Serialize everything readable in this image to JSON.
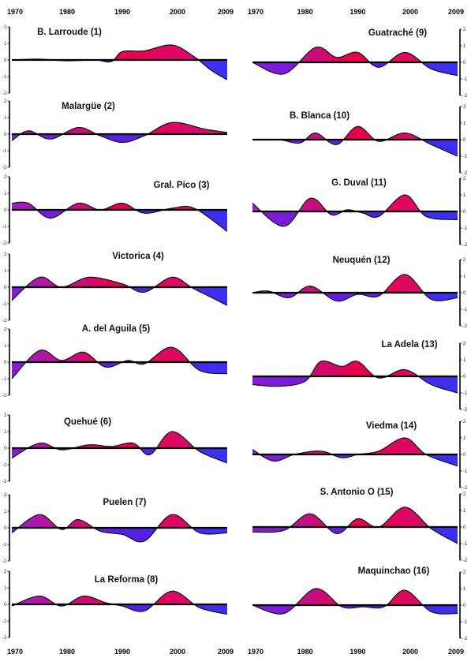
{
  "chart_data": {
    "type": "area",
    "xlim": [
      1970,
      2009
    ],
    "ylim": [
      -2,
      2
    ],
    "yticks": [
      "2",
      "1",
      "0",
      "-1",
      "-2"
    ],
    "top_axis_labels": [
      "1970",
      "1980",
      "1990",
      "2000",
      "2009"
    ],
    "bottom_axis_left_labels": [
      "1970",
      "1980",
      "1990",
      "2000",
      "2009"
    ],
    "bottom_axis_right_labels": [
      "1970",
      "1980",
      "1990",
      "2000",
      "2009"
    ],
    "positive_color": "#e8004a",
    "negative_color": "#5a1ee0",
    "stations": [
      {
        "title": "B. Larroude (1)",
        "years": [
          1970,
          1975,
          1980,
          1985,
          1988,
          1990,
          1994,
          1999,
          2003,
          2006,
          2009
        ],
        "values": [
          0,
          0.05,
          -0.05,
          0,
          -0.1,
          0.5,
          0.55,
          0.9,
          0.2,
          -0.6,
          -1.2
        ]
      },
      {
        "title": "Malargüe (2)",
        "years": [
          1970,
          1973,
          1977,
          1982,
          1986,
          1990,
          1994,
          1999,
          2005,
          2009
        ],
        "values": [
          -0.4,
          0.2,
          -0.3,
          0.4,
          -0.1,
          -0.5,
          -0.1,
          0.7,
          0.3,
          0.1
        ]
      },
      {
        "title": "Gral. Pico (3)",
        "years": [
          1970,
          1973,
          1977,
          1982,
          1986,
          1990,
          1994,
          1999,
          2003,
          2009
        ],
        "values": [
          0.4,
          0.4,
          -0.5,
          0.4,
          0,
          0.4,
          -0.2,
          0.1,
          0.1,
          -1.3
        ]
      },
      {
        "title": "Victorica (4)",
        "years": [
          1970,
          1975,
          1979,
          1984,
          1990,
          1994,
          1999,
          2003,
          2009
        ],
        "values": [
          -0.8,
          0.6,
          0,
          0.6,
          0.2,
          -0.3,
          0.6,
          -0.1,
          -1.1
        ]
      },
      {
        "title": "A. del Aguila (5)",
        "years": [
          1970,
          1975,
          1979,
          1983,
          1987,
          1991,
          1994,
          1999,
          2004,
          2009
        ],
        "values": [
          -1,
          0.7,
          0.1,
          0.6,
          -0.3,
          0.1,
          -0.1,
          0.9,
          -0.5,
          -0.7
        ]
      },
      {
        "title": "Quehué (6)",
        "years": [
          1970,
          1975,
          1979,
          1984,
          1988,
          1992,
          1995,
          1999,
          2004,
          2009
        ],
        "values": [
          -0.6,
          0.3,
          -0.1,
          0.2,
          0.1,
          0.3,
          -0.4,
          1,
          -0.2,
          -0.9
        ]
      },
      {
        "title": "Puelen (7)",
        "years": [
          1970,
          1975,
          1979,
          1982,
          1986,
          1990,
          1994,
          1999,
          2004,
          2009
        ],
        "values": [
          -0.3,
          0.8,
          -0.1,
          0.5,
          -0.2,
          -0.4,
          -0.8,
          0.8,
          -0.3,
          -0.3
        ]
      },
      {
        "title": "La Reforma (8)",
        "years": [
          1970,
          1975,
          1979,
          1983,
          1987,
          1990,
          1994,
          1999,
          2004,
          2009
        ],
        "values": [
          -0.1,
          0.5,
          -0.1,
          0.5,
          0.1,
          -0.1,
          -0.4,
          0.8,
          -0.2,
          -0.6
        ]
      },
      {
        "title": "Guatraché (9)",
        "years": [
          1970,
          1976,
          1982,
          1986,
          1990,
          1994,
          1999,
          2004,
          2009
        ],
        "values": [
          0,
          -0.7,
          0.9,
          0.3,
          0.6,
          -0.3,
          0.6,
          -0.4,
          -0.8
        ]
      },
      {
        "title": "B. Blanca (10)",
        "years": [
          1970,
          1975,
          1979,
          1982,
          1986,
          1990,
          1994,
          1999,
          2004,
          2009
        ],
        "values": [
          0,
          0,
          -0.2,
          0.4,
          -0.3,
          0.8,
          -0.1,
          0.4,
          -0.3,
          -1
        ]
      },
      {
        "title": "G. Duval (11)",
        "years": [
          1970,
          1976,
          1981,
          1985,
          1988,
          1991,
          1994,
          1999,
          2003,
          2009
        ],
        "values": [
          0.5,
          -0.9,
          0.8,
          -0.2,
          0.1,
          -0.1,
          -0.3,
          1,
          -0.3,
          -0.5
        ]
      },
      {
        "title": "Neuquén (12)",
        "years": [
          1970,
          1973,
          1977,
          1981,
          1986,
          1990,
          1994,
          1999,
          2004,
          2009
        ],
        "values": [
          0,
          0.1,
          -0.3,
          0.4,
          -0.5,
          -0.1,
          -0.2,
          1.1,
          -0.4,
          -0.3
        ]
      },
      {
        "title": "La Adela (13)",
        "years": [
          1970,
          1975,
          1980,
          1983,
          1987,
          1990,
          1994,
          1999,
          2004,
          2009
        ],
        "values": [
          -0.5,
          -0.6,
          -0.3,
          0.9,
          0.6,
          0.9,
          -0.1,
          0.4,
          -0.5,
          -1
        ]
      },
      {
        "title": "Viedma (14)",
        "years": [
          1970,
          1974,
          1978,
          1983,
          1987,
          1990,
          1994,
          1999,
          2003,
          2009
        ],
        "values": [
          0.3,
          -0.4,
          0,
          0.2,
          -0.2,
          0,
          0.2,
          1,
          0,
          -0.7
        ]
      },
      {
        "title": "S. Antonio O (15)",
        "years": [
          1970,
          1976,
          1981,
          1986,
          1990,
          1994,
          1999,
          2004,
          2009
        ],
        "values": [
          -0.3,
          -0.2,
          0.8,
          -0.4,
          0.5,
          0,
          1.2,
          -0.1,
          -1
        ]
      },
      {
        "title": "Maquinchao (16)",
        "years": [
          1970,
          1976,
          1982,
          1987,
          1991,
          1995,
          1999,
          2004,
          2009
        ],
        "values": [
          0,
          -0.5,
          1,
          -0.1,
          -0.1,
          -0.1,
          0.9,
          -0.4,
          -0.5
        ]
      }
    ]
  }
}
